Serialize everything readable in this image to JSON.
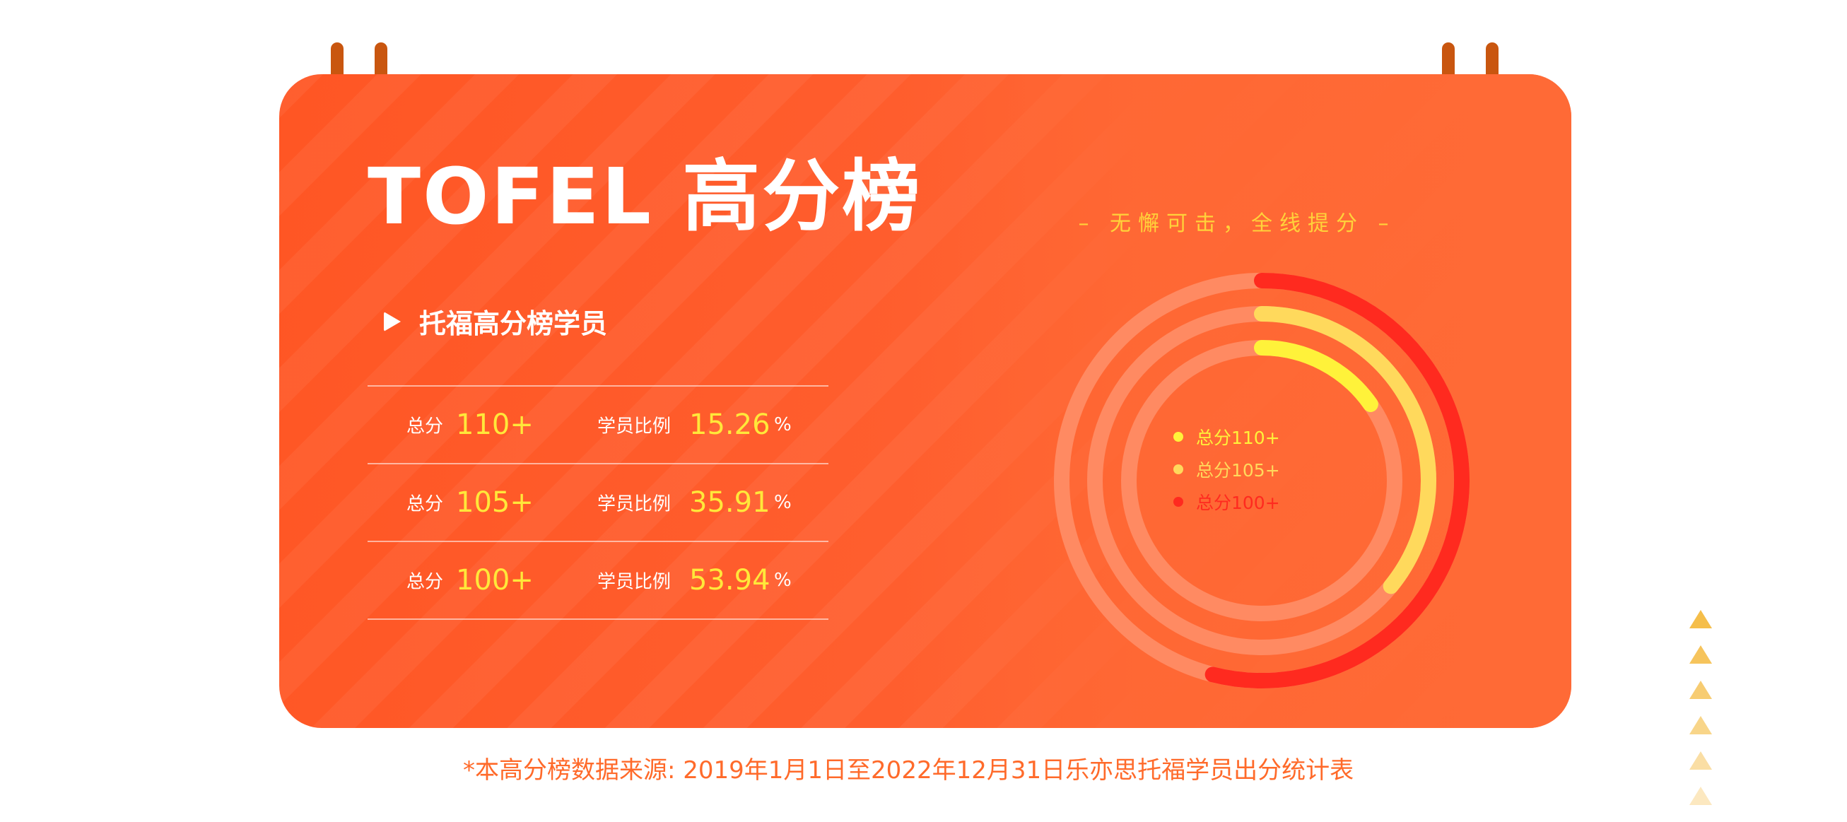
{
  "title": "TOFEL 高分榜",
  "subtitle": "托福高分榜学员",
  "slogan": "– 无懈可击，全线提分 –",
  "rows": [
    {
      "score_label": "总分",
      "score": "110+",
      "ratio_label": "学员比例",
      "ratio": "15.26",
      "unit": "%"
    },
    {
      "score_label": "总分",
      "score": "105+",
      "ratio_label": "学员比例",
      "ratio": "35.91",
      "unit": "%"
    },
    {
      "score_label": "总分",
      "score": "100+",
      "ratio_label": "学员比例",
      "ratio": "53.94",
      "unit": "%"
    }
  ],
  "footnote": "*本高分榜数据来源: 2019年1月1日至2022年12月31日乐亦思托福学员出分统计表",
  "icons": {
    "bullet": "play-icon",
    "clip": "binder-clip-icon",
    "decoration": "triangle-icon"
  },
  "colors": {
    "card": "#ff5e2e",
    "highlight": "#ffe83a",
    "slogan": "#ffd23a",
    "footnote": "#ff6a2a",
    "clip": "#c9560f",
    "triangle": "#f5be4a"
  },
  "chart_data": {
    "type": "radial-bar",
    "unit": "%",
    "series": [
      {
        "name": "总分110+",
        "value": 15.26,
        "color": "#fff23a"
      },
      {
        "name": "总分105+",
        "value": 35.91,
        "color": "#ffd95c"
      },
      {
        "name": "总分100+",
        "value": 53.94,
        "color": "#ff2a1f"
      }
    ],
    "track_color": "#ff8a62",
    "max": 100,
    "start": "top",
    "direction": "clockwise"
  }
}
